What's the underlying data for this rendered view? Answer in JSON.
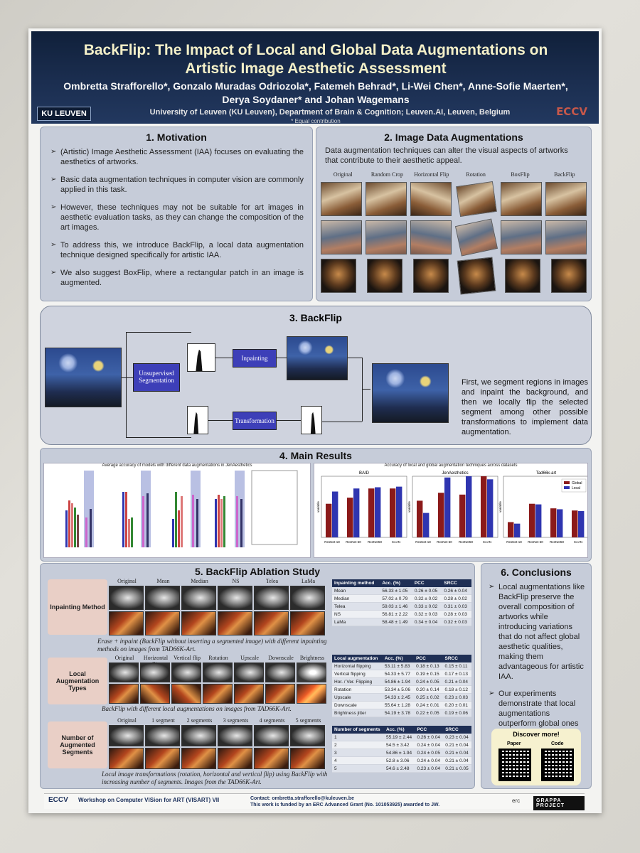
{
  "header": {
    "title": "BackFlip: The Impact of Local and Global Data Augmentations on Artistic Image Aesthetic Assessment",
    "authors": "Ombretta Strafforello*, Gonzalo Muradas Odriozola*, Fatemeh Behrad*, Li-Wei Chen*, Anne-Sofie Maerten*, Derya Soydaner* and Johan Wagemans",
    "affiliation": "University of Leuven (KU Leuven), Department of Brain & Cognition; Leuven.AI, Leuven, Belgium",
    "equal": "* Equal contribution",
    "logo_left": "KU LEUVEN",
    "logo_right": "ECCV"
  },
  "motivation": {
    "heading": "1. Motivation",
    "items": [
      "(Artistic) Image Aesthetic Assessment (IAA) focuses on evaluating the aesthetics of artworks.",
      "Basic data augmentation techniques in computer vision are commonly applied in this task.",
      "However, these techniques may not be suitable for art images in aesthetic evaluation tasks, as they can change the composition of the art images.",
      "To address this, we introduce BackFlip, a local data augmentation technique designed specifically for artistic IAA.",
      "We also suggest BoxFlip, where a rectangular patch in an image is augmented."
    ]
  },
  "augmentations": {
    "heading": "2. Image Data Augmentations",
    "intro": "Data augmentation techniques can alter the visual aspects of artworks that contribute to their aesthetic appeal.",
    "columns": [
      "Original",
      "Random Crop",
      "Horizontal Flip",
      "Rotation",
      "BoxFlip",
      "BackFlip"
    ]
  },
  "backflip": {
    "heading": "3. BackFlip",
    "node_segmentation": "Unsupervised Segmentation",
    "node_inpainting": "Inpainting",
    "node_transformation": "Transformation",
    "description": "First, we segment regions in images and inpaint the background, and then we locally flip the selected segment among other possible transformations to implement data augmentation."
  },
  "results": {
    "heading": "4. Main Results",
    "left_title": "Average accuracy of models with different data augmentations in JenAesthetics",
    "right_title": "Accuracy of local and global augmentation techniques across datasets"
  },
  "chart_data": [
    {
      "type": "bar",
      "title": "BAID",
      "categories": [
        "ResNet-18",
        "ResNet-50",
        "ResNet50",
        "SAAN"
      ],
      "series": [
        {
          "name": "Global",
          "values": [
            70.5,
            71.5,
            73.0,
            73.0
          ]
        },
        {
          "name": "Local",
          "values": [
            72.5,
            73.0,
            73.2,
            73.3
          ]
        }
      ],
      "ylim": [
        65,
        75
      ],
      "ylabel": "variable"
    },
    {
      "type": "bar",
      "title": "JenAesthetics",
      "categories": [
        "ResNet-18",
        "ResNet-50",
        "ResNet50",
        "SAAN"
      ],
      "series": [
        {
          "name": "Global",
          "values": [
            71.0,
            72.3,
            72.0,
            75.0
          ]
        },
        {
          "name": "Local",
          "values": [
            69.0,
            74.8,
            75.0,
            74.5
          ]
        }
      ],
      "ylim": [
        65,
        75
      ],
      "ylabel": "variable"
    },
    {
      "type": "bar",
      "title": "Tad66k-art",
      "categories": [
        "ResNet-18",
        "ResNet-50",
        "ResNet50",
        "SAAN"
      ],
      "series": [
        {
          "name": "Global",
          "values": [
            55.0,
            61.0,
            59.5,
            58.8
          ]
        },
        {
          "name": "Local",
          "values": [
            54.5,
            60.8,
            59.2,
            58.6
          ]
        }
      ],
      "ylim": [
        50,
        70
      ],
      "ylabel": "variable"
    }
  ],
  "ablation": {
    "heading": "5. BackFlip Ablation Study",
    "inpainting": {
      "label": "Inpainting Method",
      "columns": [
        "Original",
        "Mean",
        "Median",
        "NS",
        "Telea",
        "LaMa"
      ],
      "caption": "Erase + inpaint (BackFlip without inserting a segmented image) with different inpainting methods on images from TAD66K-Art.",
      "table_head": [
        "Inpainting method",
        "Acc. (%)",
        "PCC",
        "SRCC"
      ],
      "rows": [
        [
          "Mean",
          "56.33 ± 1.05",
          "0.26 ± 0.05",
          "0.26 ± 0.04"
        ],
        [
          "Median",
          "57.02 ± 0.79",
          "0.32 ± 0.02",
          "0.28 ± 0.02"
        ],
        [
          "Telea",
          "59.03 ± 1.46",
          "0.33 ± 0.02",
          "0.31 ± 0.03"
        ],
        [
          "NS",
          "56.81 ± 2.22",
          "0.32 ± 0.03",
          "0.28 ± 0.03"
        ],
        [
          "LaMa",
          "58.48 ± 1.49",
          "0.34 ± 0.04",
          "0.32 ± 0.03"
        ]
      ]
    },
    "local": {
      "label": "Local Augmentation Types",
      "columns": [
        "Original",
        "Horizontal flip",
        "Vertical flip",
        "Rotation",
        "Upscale",
        "Downscale",
        "Brightness jitter"
      ],
      "caption": "BackFlip with different local augmentations on images from TAD66K-Art.",
      "table_head": [
        "Local augmentation",
        "Acc. (%)",
        "PCC",
        "SRCC"
      ],
      "rows": [
        [
          "Horizontal flipping",
          "53.11 ± 5.83",
          "0.18 ± 0.13",
          "0.15 ± 0.11"
        ],
        [
          "Vertical flipping",
          "54.33 ± 5.77",
          "0.19 ± 0.15",
          "0.17 ± 0.13"
        ],
        [
          "Hor. / Ver. Flipping",
          "54.86 ± 1.94",
          "0.24 ± 0.05",
          "0.21 ± 0.04"
        ],
        [
          "Rotation",
          "53.34 ± 5.06",
          "0.20 ± 0.14",
          "0.18 ± 0.12"
        ],
        [
          "Upscale",
          "54.33 ± 2.45",
          "0.25 ± 0.02",
          "0.23 ± 0.03"
        ],
        [
          "Downscale",
          "55.64 ± 1.28",
          "0.24 ± 0.01",
          "0.20 ± 0.01"
        ],
        [
          "Brightness jitter",
          "54.19 ± 3.78",
          "0.22 ± 0.05",
          "0.19 ± 0.06"
        ]
      ]
    },
    "segments": {
      "label": "Number of Augmented Segments",
      "columns": [
        "Original",
        "1 segment",
        "2 segments",
        "3 segments",
        "4 segments",
        "5 segments"
      ],
      "caption": "Local image transformations (rotation, horizontal and vertical flip) using BackFlip with increasing number of segments. Images from the TAD66K-Art.",
      "table_head": [
        "Number of segments",
        "Acc. (%)",
        "PCC",
        "SRCC"
      ],
      "rows": [
        [
          "1",
          "55.19 ± 2.44",
          "0.26 ± 0.04",
          "0.23 ± 0.04"
        ],
        [
          "2",
          "54.5 ± 3.42",
          "0.24 ± 0.04",
          "0.21 ± 0.04"
        ],
        [
          "3",
          "54.86 ± 1.94",
          "0.24 ± 0.05",
          "0.21 ± 0.04"
        ],
        [
          "4",
          "52.8 ± 3.06",
          "0.24 ± 0.04",
          "0.21 ± 0.04"
        ],
        [
          "5",
          "54.6 ± 2.48",
          "0.23 ± 0.04",
          "0.21 ± 0.05"
        ]
      ]
    }
  },
  "conclusions": {
    "heading": "6. Conclusions",
    "items": [
      "Local augmentations like BackFlip preserve the overall composition of artworks while introducing variations that do not affect global aesthetic qualities, making them advantageous for artistic IAA.",
      "Our experiments demonstrate that local augmentations outperform global ones in the majority of our tests."
    ],
    "discover": "Discover more!",
    "paper": "Paper",
    "code": "Code"
  },
  "footer": {
    "eccv": "ECCV",
    "workshop": "Workshop on Computer VISion for ART (VISART) VII",
    "contact": "Contact: ombretta.strafforello@kuleuven.be",
    "funding": "This work is funded by an ERC Advanced Grant (No. 101053925) awarded to JW.",
    "erc": "erc",
    "grappa": "GRAPPA PROJECT"
  },
  "colors": {
    "global": "#8b1a1a",
    "local": "#2f35b0",
    "header": "#1b2e50"
  }
}
